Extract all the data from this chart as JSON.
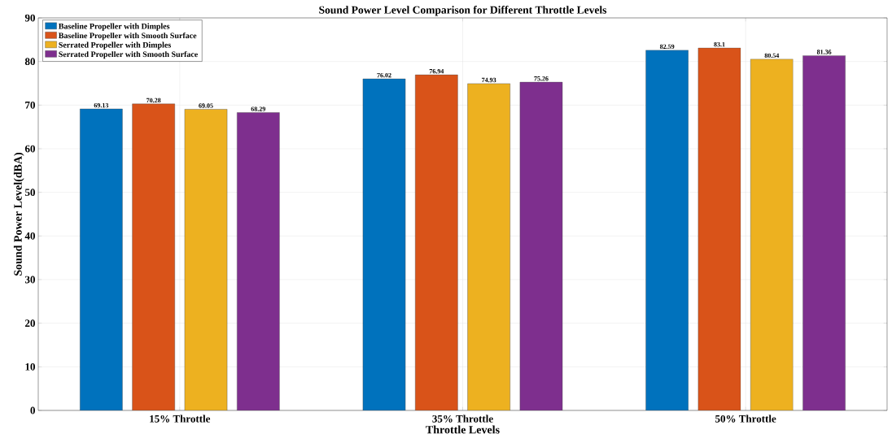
{
  "chart_data": {
    "type": "bar",
    "title": "Sound Power Level Comparison for Different Throttle Levels",
    "xlabel": "Throttle Levels",
    "ylabel": "Sound Power Level(dBA)",
    "categories": [
      "15% Throttle",
      "35% Throttle",
      "50% Throttle"
    ],
    "series": [
      {
        "name": "Baseline Propeller with Dimples",
        "color": "#0072bd",
        "values": [
          69.13,
          76.02,
          82.59
        ]
      },
      {
        "name": "Baseline Propeller with Smooth Surface",
        "color": "#d95319",
        "values": [
          70.28,
          76.94,
          83.1
        ]
      },
      {
        "name": "Serrated Propeller with Dimples",
        "color": "#edb120",
        "values": [
          69.05,
          74.93,
          80.54
        ]
      },
      {
        "name": "Serrated Propeller with Smooth Surface",
        "color": "#7e2f8e",
        "values": [
          68.29,
          75.26,
          81.36
        ]
      }
    ],
    "ylim": [
      0,
      90
    ],
    "yticks": [
      0,
      10,
      20,
      30,
      40,
      50,
      60,
      70,
      80,
      90
    ],
    "grid": true,
    "legend": "top left",
    "data_labels": true
  }
}
